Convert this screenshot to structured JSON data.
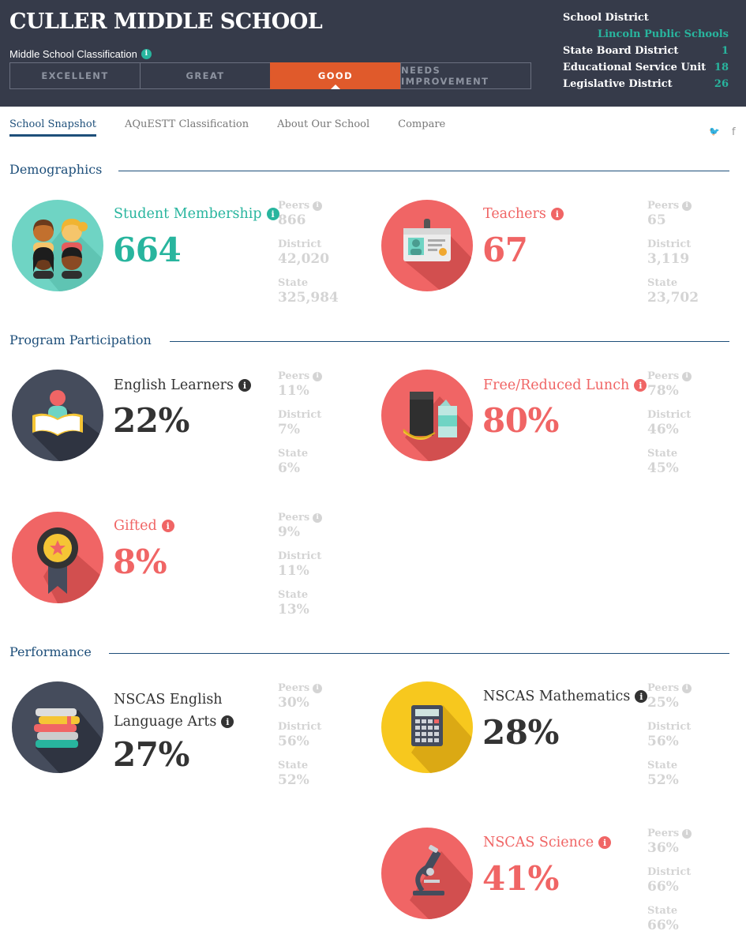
{
  "school": {
    "name": "CULLER MIDDLE SCHOOL",
    "classification_label": "Middle School Classification",
    "classification_levels": [
      "EXCELLENT",
      "GREAT",
      "GOOD",
      "NEEDS IMPROVEMENT"
    ],
    "current_classification": "GOOD"
  },
  "district_info": {
    "school_district_label": "School District",
    "school_district_value": "Lincoln Public Schools",
    "rows": [
      {
        "label": "State Board District",
        "value": "1"
      },
      {
        "label": "Educational Service Unit",
        "value": "18"
      },
      {
        "label": "Legislative District",
        "value": "26"
      }
    ]
  },
  "nav": {
    "tabs": [
      "School Snapshot",
      "AQuESTT Classification",
      "About Our School",
      "Compare"
    ],
    "active": "School Snapshot"
  },
  "icons": {
    "info": "i",
    "twitter": "twitter-icon",
    "facebook": "facebook-icon"
  },
  "social": {
    "twitter_glyph": "🐦",
    "facebook_glyph": "f"
  },
  "compare_labels": {
    "peers": "Peers",
    "district": "District",
    "state": "State"
  },
  "colors": {
    "header_bg": "#363b4a",
    "active_classification": "#e05a2b",
    "teal": "#28b59e",
    "coral": "#f06565",
    "navy": "#1e4f7a",
    "muted": "#d4d4d4"
  },
  "sections": {
    "demographics": {
      "title": "Demographics",
      "metrics": [
        {
          "key": "student_membership",
          "label": "Student Membership",
          "value": "664",
          "peers": "866",
          "district": "42,020",
          "state": "325,984",
          "color": "teal",
          "icon": "students-icon"
        },
        {
          "key": "teachers",
          "label": "Teachers",
          "value": "67",
          "peers": "65",
          "district": "3,119",
          "state": "23,702",
          "color": "coral",
          "icon": "id-badge-icon"
        }
      ]
    },
    "program_participation": {
      "title": "Program Participation",
      "metrics": [
        {
          "key": "english_learners",
          "label": "English Learners",
          "value": "22%",
          "peers": "11%",
          "district": "7%",
          "state": "6%",
          "color": "dark",
          "icon": "reader-book-icon"
        },
        {
          "key": "free_reduced_lunch",
          "label": "Free/Reduced Lunch",
          "value": "80%",
          "peers": "78%",
          "district": "46%",
          "state": "45%",
          "color": "coral",
          "icon": "lunch-bag-icon"
        },
        {
          "key": "gifted",
          "label": "Gifted",
          "value": "8%",
          "peers": "9%",
          "district": "11%",
          "state": "13%",
          "color": "coral",
          "icon": "award-ribbon-icon"
        }
      ]
    },
    "performance": {
      "title": "Performance",
      "metrics": [
        {
          "key": "nscas_ela",
          "label_line1": "NSCAS English",
          "label_line2": "Language Arts",
          "value": "27%",
          "peers": "30%",
          "district": "56%",
          "state": "52%",
          "color": "dark",
          "icon": "book-stack-icon"
        },
        {
          "key": "nscas_math",
          "label": "NSCAS Mathematics",
          "value": "28%",
          "peers": "25%",
          "district": "56%",
          "state": "52%",
          "color": "dark",
          "icon": "calculator-icon"
        },
        {
          "key": "nscas_science",
          "label": "NSCAS Science",
          "value": "41%",
          "peers": "36%",
          "district": "66%",
          "state": "66%",
          "color": "coral",
          "icon": "microscope-icon"
        }
      ]
    }
  }
}
